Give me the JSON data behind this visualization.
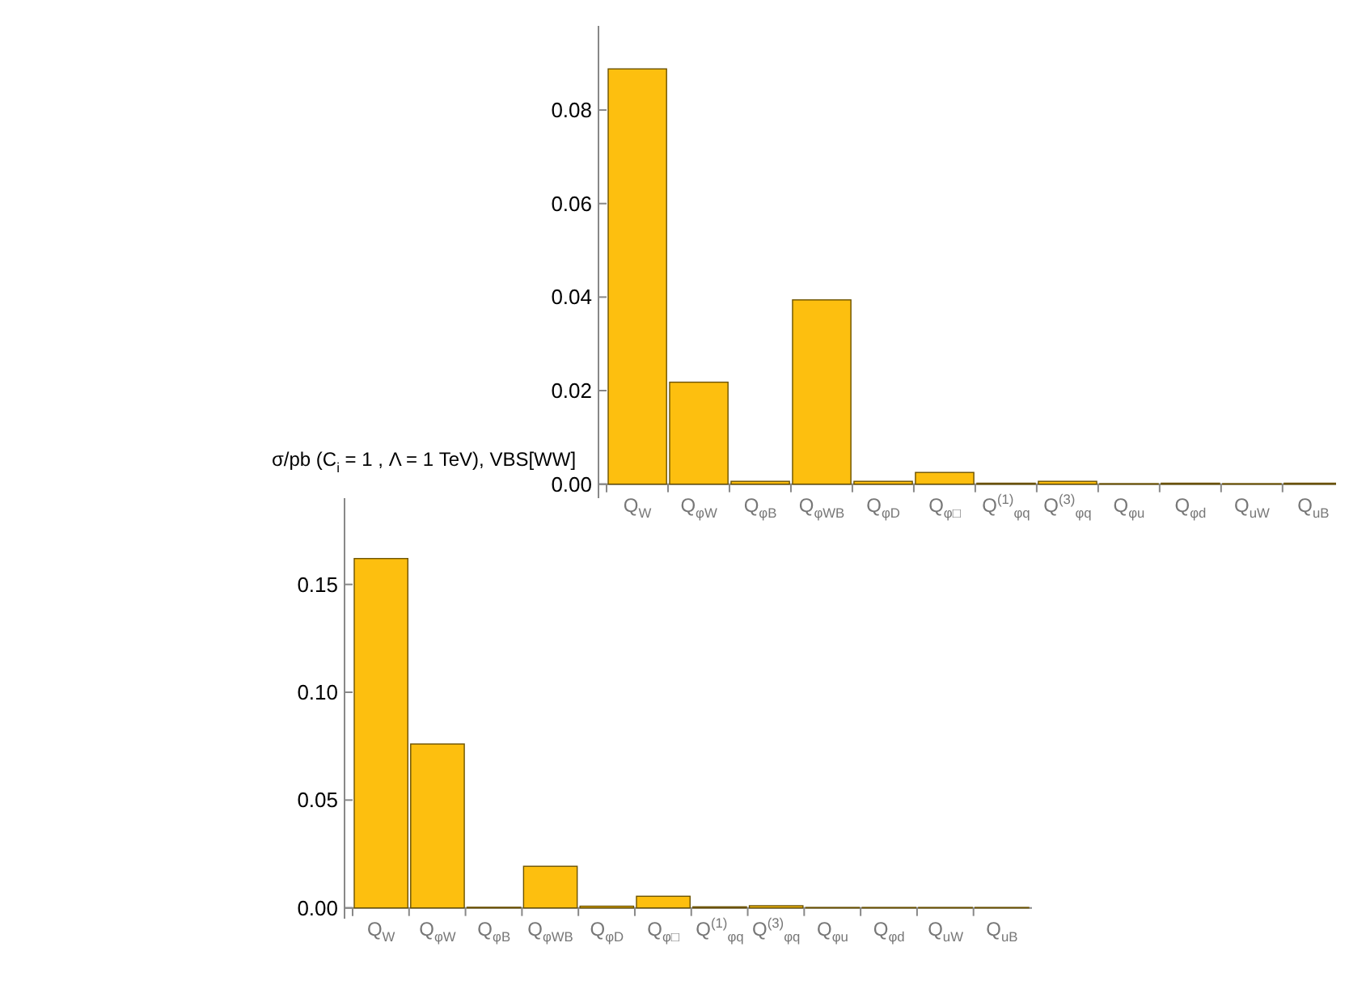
{
  "chart_data": [
    {
      "type": "bar",
      "categories": [
        "Q$_{W}$",
        "Q$_{φW}$",
        "Q$_{φB}$",
        "Q$_{φWB}$",
        "Q$_{φD}$",
        "Q$_{φ□}$",
        "Q$^{(1)}$$_{φq}$",
        "Q$^{(3)}$$_{φq}$",
        "Q$_{φu}$",
        "Q$_{φd}$",
        "Q$_{uW}$",
        "Q$_{uB}$"
      ],
      "values": [
        0.0888,
        0.0218,
        0.0006,
        0.0394,
        0.0006,
        0.0025,
        0.0002,
        0.0006,
        0.0001,
        0.0002,
        0.0001,
        0.0002
      ],
      "color": "#fdbf0f",
      "ylim": [
        -0.003,
        0.098
      ],
      "yticks": [
        {
          "value": 0,
          "label": "0.00"
        },
        {
          "value": 0.02,
          "label": "0.02"
        },
        {
          "value": 0.04,
          "label": "0.04"
        },
        {
          "value": 0.06,
          "label": "0.06"
        },
        {
          "value": 0.08,
          "label": "0.08"
        }
      ],
      "grid": false
    },
    {
      "type": "bar",
      "title": "σ/pb (C$_{i}$ = 1 , Λ = 1 TeV), VBS[WW]",
      "categories": [
        "Q$_{W}$",
        "Q$_{φW}$",
        "Q$_{φB}$",
        "Q$_{φWB}$",
        "Q$_{φD}$",
        "Q$_{φ□}$",
        "Q$^{(1)}$$_{φq}$",
        "Q$^{(3)}$$_{φq}$",
        "Q$_{φu}$",
        "Q$_{φd}$",
        "Q$_{uW}$",
        "Q$_{uB}$"
      ],
      "values": [
        0.162,
        0.076,
        0.0003,
        0.0193,
        0.0008,
        0.0054,
        0.0005,
        0.001,
        0.0002,
        0.0002,
        0.0002,
        0.0002
      ],
      "color": "#fdbf0f",
      "ylim": [
        -0.005,
        0.19
      ],
      "yticks": [
        {
          "value": 0,
          "label": "0.00"
        },
        {
          "value": 0.05,
          "label": "0.05"
        },
        {
          "value": 0.1,
          "label": "0.10"
        },
        {
          "value": 0.15,
          "label": "0.15"
        }
      ],
      "grid": false
    }
  ]
}
